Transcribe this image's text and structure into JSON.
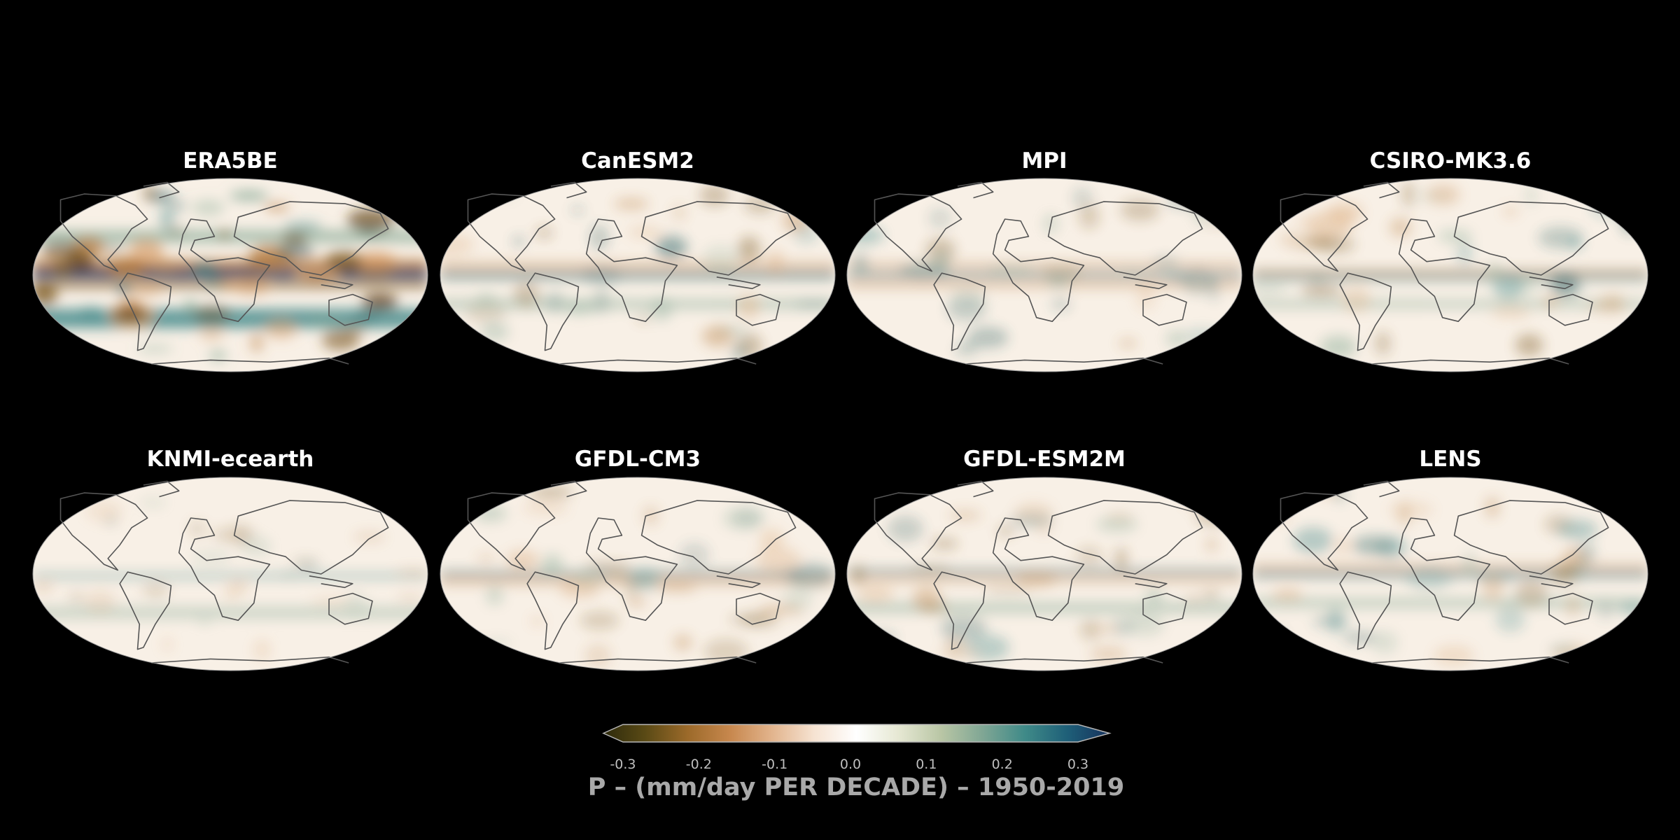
{
  "panels": [
    {
      "title": "ERA5BE",
      "intensity": 1.0,
      "pattern": "era5"
    },
    {
      "title": "CanESM2",
      "intensity": 0.55,
      "pattern": "canesm"
    },
    {
      "title": "MPI",
      "intensity": 0.45,
      "pattern": "mpi"
    },
    {
      "title": "CSIRO-MK3.6",
      "intensity": 0.55,
      "pattern": "csiro"
    },
    {
      "title": "KNMI-ecearth",
      "intensity": 0.28,
      "pattern": "knmi"
    },
    {
      "title": "GFDL-CM3",
      "intensity": 0.5,
      "pattern": "gfdlcm3"
    },
    {
      "title": "GFDL-ESM2M",
      "intensity": 0.5,
      "pattern": "gfdlesm"
    },
    {
      "title": "LENS",
      "intensity": 0.5,
      "pattern": "lens"
    }
  ],
  "colorbar": {
    "label": "P – (mm/day PER DECADE) – 1950-2019",
    "ticks": [
      "-0.3",
      "-0.2",
      "-0.1",
      "0.0",
      "0.1",
      "0.2",
      "0.3"
    ],
    "range": [
      -0.3,
      0.3
    ],
    "extend": "both",
    "colors": [
      "#2d2a0c",
      "#5a4a15",
      "#9c6a2a",
      "#c7874d",
      "#e2b48d",
      "#f6e3d2",
      "#ffffff",
      "#e6e8d3",
      "#b9c6a5",
      "#7fa694",
      "#3f8a88",
      "#1e5f78",
      "#16315c"
    ]
  },
  "style": {
    "background": "#000000",
    "coastline": "#555555",
    "ocean_neutral": "#f8f0e6"
  }
}
